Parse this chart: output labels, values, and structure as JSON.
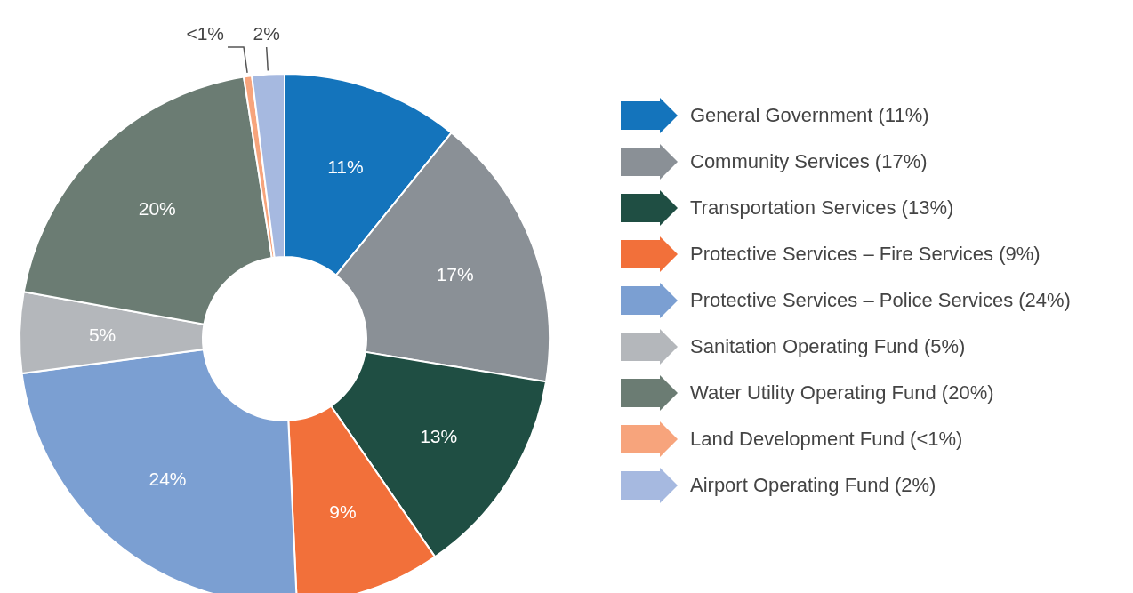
{
  "chart_data": {
    "type": "donut",
    "categories": [
      "General Government (11%)",
      "Community Services (17%)",
      "Transportation Services (13%)",
      "Protective Services – Fire Services (9%)",
      "Protective Services – Police Services (24%)",
      "Sanitation Operating Fund (5%)",
      "Water Utility Operating Fund (20%)",
      "Land Development Fund (<1%)",
      "Airport Operating Fund (2%)"
    ],
    "values": [
      11,
      17,
      13,
      9,
      24,
      5,
      20,
      0.5,
      2
    ],
    "value_labels": [
      "11%",
      "17%",
      "13%",
      "9%",
      "24%",
      "5%",
      "20%",
      "<1%",
      "2%"
    ],
    "colors": [
      "#1474bc",
      "#8a9096",
      "#1f4e43",
      "#f2703a",
      "#7b9fd2",
      "#b4b7bb",
      "#6b7c73",
      "#f7a47c",
      "#a6b9e0"
    ],
    "legend": "right"
  }
}
